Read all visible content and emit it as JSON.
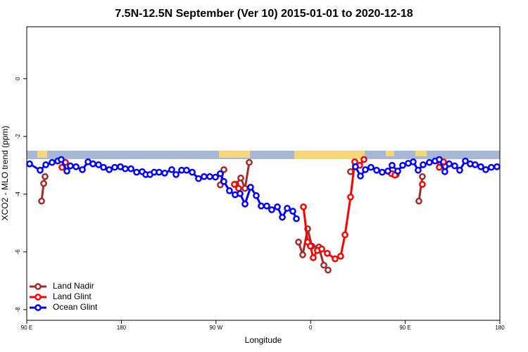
{
  "chart_data": {
    "type": "line",
    "title": "7.5N-12.5N September (Ver 10)   2015-01-01 to 2020-12-18",
    "x_label": "Longitude",
    "y_label": "XCO2 - MLO trend (ppm)",
    "xlim": [
      90,
      540
    ],
    "ylim": [
      -8.37,
      1.8
    ],
    "xticks": [
      {
        "value": 90,
        "label": "90 E"
      },
      180,
      {
        "value": 270,
        "label": "90 W"
      },
      {
        "value": 360,
        "label": "0"
      },
      {
        "value": 450,
        "label": "90 E"
      },
      {
        "value": 540,
        "label": "180"
      }
    ],
    "yticks": [
      -8,
      -6,
      -4,
      -2,
      0
    ],
    "legend": "bottom-left",
    "series": [
      {
        "name": "Land Nadir",
        "color": "#a52a2a",
        "x": [
          104.1,
          106.1,
          107.4,
          null,
          274.1,
          277.5,
          null,
          288.9,
          293.6,
          297.6,
          301.6,
          null,
          348.5,
          352.5,
          357.2,
          361.2,
          367.9,
          372.6,
          376.6,
          null,
          398,
          402.7,
          null,
          437.5,
          441.5,
          null,
          463,
          466.3,
          null,
          483.7,
          486.4
        ],
        "values": [
          -4.24,
          -3.63,
          -3.39,
          null,
          -3.68,
          -3.15,
          null,
          -3.66,
          -3.44,
          -3.8,
          -2.9,
          null,
          -5.66,
          -6.1,
          -5.2,
          -5.8,
          -5.83,
          -6.46,
          -6.63,
          null,
          -3.22,
          -3,
          null,
          -3.29,
          -3.32,
          null,
          -4.24,
          -3.39,
          null,
          -2.95,
          -2.9
        ]
      },
      {
        "name": "Land Glint",
        "color": "#ff0000",
        "x": [
          123.5,
          126.8,
          null,
          287.5,
          291.5,
          null,
          353.2,
          357.2,
          359.8,
          362.5,
          366.5,
          370.6,
          375.9,
          383.3,
          388.6,
          392.7,
          398,
          402,
          406.7,
          410.7,
          null,
          436.9,
          440.2,
          null,
          466.3,
          null,
          482.4,
          486.4
        ],
        "values": [
          -3.07,
          -2.9,
          null,
          -3.66,
          -3.8,
          null,
          -4.44,
          -5.66,
          -5.8,
          -6.2,
          -5.95,
          -5.9,
          -6.05,
          -6.24,
          -6.15,
          -5.41,
          -4.1,
          -2.88,
          -3,
          -2.8,
          null,
          -3.29,
          -3.34,
          null,
          -3.66,
          null,
          -3.07,
          -2.88
        ]
      },
      {
        "name": "Ocean Glint",
        "color": "#0000ff",
        "x": [
          92.7,
          102.7,
          108.1,
          114.1,
          119.5,
          122.8,
          128.2,
          131.5,
          136.9,
          142.9,
          148.3,
          153,
          158.3,
          163,
          168.4,
          173.7,
          179.1,
          183.7,
          189.1,
          194.5,
          199.8,
          203.2,
          207.2,
          211.2,
          215.9,
          221.2,
          227.9,
          232,
          237.3,
          242,
          247.4,
          253.4,
          258.7,
          264.1,
          269.5,
          274.1,
          277.5,
          282.8,
          288.2,
          292.9,
          297.6,
          302.9,
          308.3,
          313,
          318.3,
          323,
          328.4,
          333.1,
          337.8,
          343.1,
          346.5,
          null,
          402.7,
          407.4,
          412.1,
          417.4,
          422.8,
          428.1,
          433.5,
          437.5,
          442.9,
          447.6,
          452.9,
          457.6,
          462.3,
          467,
          473,
          478.4,
          482.4,
          487.7,
          491.8,
          497.1,
          501.8,
          507.2,
          511.8,
          516.5,
          521.9,
          526.6,
          531.9,
          537.3
        ],
        "values": [
          -2.95,
          -3.17,
          -2.98,
          -2.9,
          -2.85,
          -2.8,
          -3.2,
          -3.02,
          -3.05,
          -3.15,
          -2.88,
          -2.95,
          -2.98,
          -3.07,
          -3.15,
          -3.07,
          -3.05,
          -3.12,
          -3.12,
          -3.24,
          -3.22,
          -3.32,
          -3.32,
          -3.24,
          -3.24,
          -3.27,
          -3.15,
          -3.32,
          -3.17,
          -3.17,
          -3.24,
          -3.46,
          -3.39,
          -3.39,
          -3.41,
          -3.29,
          -3.56,
          -3.88,
          -4.02,
          -3.98,
          -4.34,
          -3.76,
          -4.05,
          -4.41,
          -4.41,
          -4.54,
          -4.44,
          -4.8,
          -4.49,
          -4.59,
          -4.85,
          null,
          -3.05,
          -3.37,
          -3.15,
          -3.07,
          -3.17,
          -3.24,
          -3.2,
          -3,
          -3.2,
          -3,
          -2.93,
          -2.88,
          -3.17,
          -2.98,
          -2.9,
          -2.85,
          -2.8,
          -3.22,
          -2.95,
          -3.02,
          -3.17,
          -2.85,
          -2.95,
          -2.98,
          -3.05,
          -3.15,
          -3.07,
          -3.05
        ]
      }
    ]
  }
}
